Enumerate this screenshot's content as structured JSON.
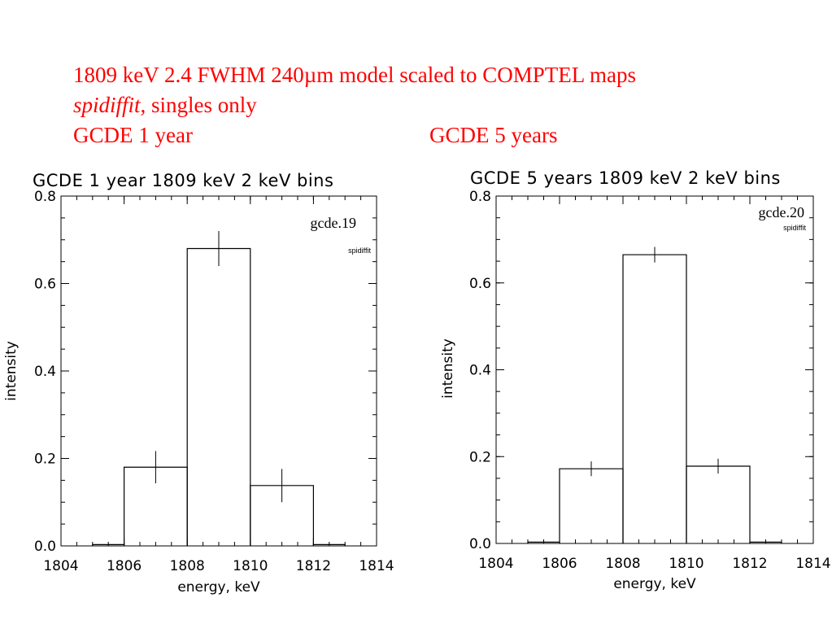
{
  "caption": {
    "line1": "1809 keV 2.4 FWHM 240µm model scaled to COMPTEL maps",
    "line2_italic": "spidiffit,",
    "line2_rest": " singles only",
    "line3_left": "GCDE 1 year",
    "line3_right": "GCDE 5 years"
  },
  "chart_data": [
    {
      "type": "bar",
      "title": "GCDE 1 year 1809 keV 2 keV bins",
      "xlabel": "energy, keV",
      "ylabel": "intensity",
      "xlim": [
        1804,
        1814
      ],
      "ylim": [
        0.0,
        0.8
      ],
      "xticks": [
        "1804",
        "1806",
        "1808",
        "1810",
        "1812",
        "1814"
      ],
      "yticks": [
        "0.0",
        "0.2",
        "0.4",
        "0.6",
        "0.8"
      ],
      "bins": [
        {
          "x0": 1805,
          "x1": 1806,
          "value": 0.003,
          "err": 0
        },
        {
          "x0": 1806,
          "x1": 1808,
          "value": 0.18,
          "err": 0.037
        },
        {
          "x0": 1808,
          "x1": 1810,
          "value": 0.68,
          "err": 0.04
        },
        {
          "x0": 1810,
          "x1": 1812,
          "value": 0.138,
          "err": 0.038
        },
        {
          "x0": 1812,
          "x1": 1813,
          "value": 0.003,
          "err": 0
        }
      ],
      "annotation": "gcde.19",
      "annotation_sub": "spidiffit",
      "annotation_pos": "top-right"
    },
    {
      "type": "bar",
      "title": "GCDE 5 years 1809 keV 2 keV bins",
      "xlabel": "energy, keV",
      "ylabel": "intensity",
      "xlim": [
        1804,
        1814
      ],
      "ylim": [
        0.0,
        0.8
      ],
      "xticks": [
        "1804",
        "1806",
        "1808",
        "1810",
        "1812",
        "1814"
      ],
      "yticks": [
        "0.0",
        "0.2",
        "0.4",
        "0.6",
        "0.8"
      ],
      "bins": [
        {
          "x0": 1805,
          "x1": 1806,
          "value": 0.003,
          "err": 0
        },
        {
          "x0": 1806,
          "x1": 1808,
          "value": 0.172,
          "err": 0.017
        },
        {
          "x0": 1808,
          "x1": 1810,
          "value": 0.665,
          "err": 0.018
        },
        {
          "x0": 1810,
          "x1": 1812,
          "value": 0.178,
          "err": 0.017
        },
        {
          "x0": 1812,
          "x1": 1813,
          "value": 0.003,
          "err": 0
        }
      ],
      "annotation": "gcde.20",
      "annotation_sub": "spidiffit",
      "annotation_pos": "top-right"
    }
  ]
}
